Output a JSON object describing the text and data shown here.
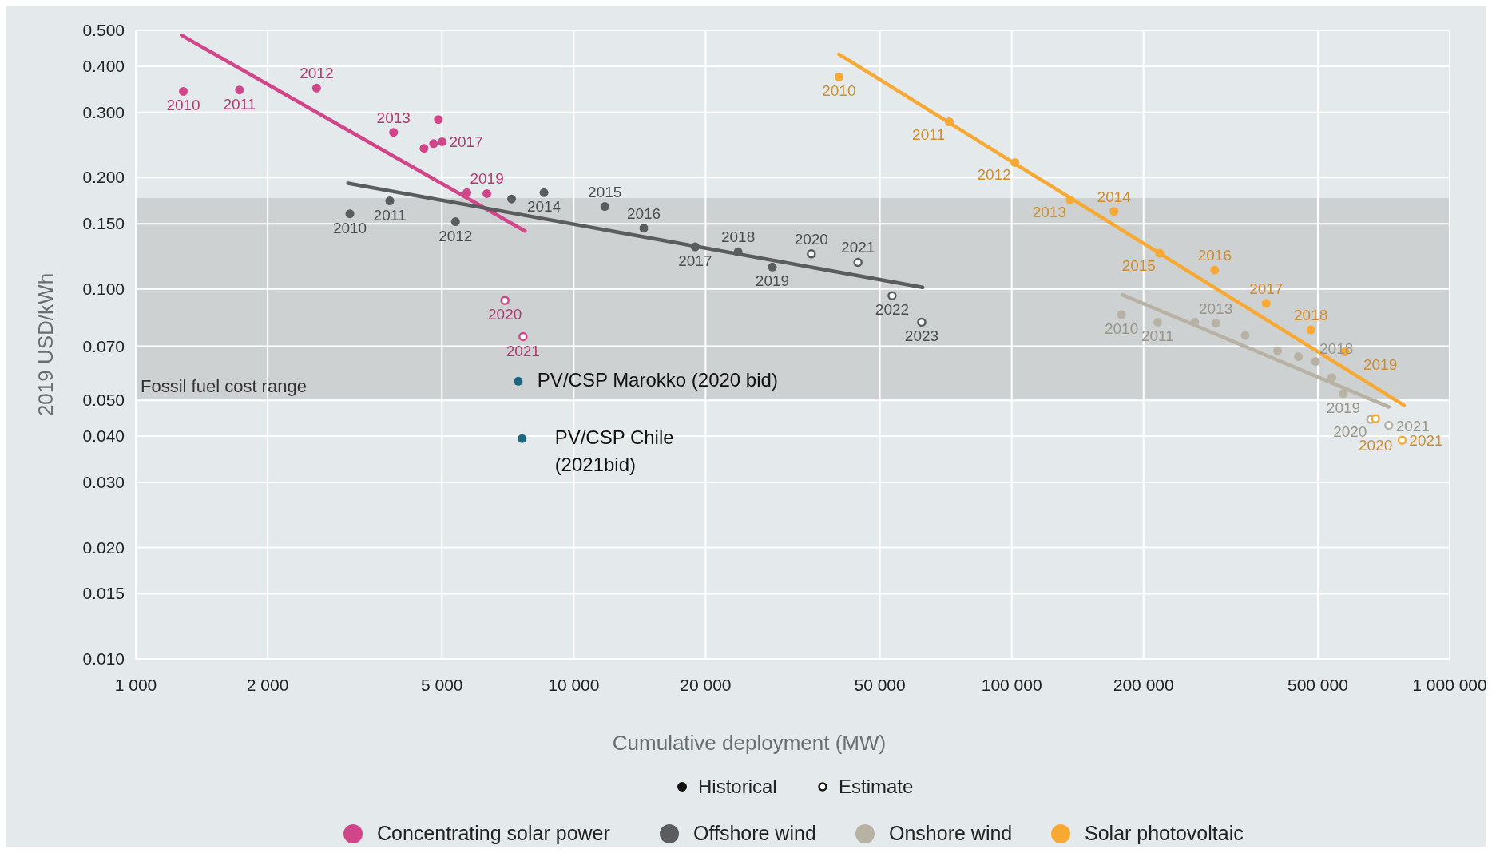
{
  "chart_data": {
    "type": "scatter",
    "xlabel": "Cumulative deployment (MW)",
    "ylabel": "2019 USD/kWh",
    "log": "xy",
    "grid": true,
    "legend": "bottom",
    "marker": "circle",
    "xlim": [
      1000,
      1000000
    ],
    "ylim": [
      0.01,
      0.5
    ],
    "xticks": [
      {
        "value": 1000,
        "label": "1 000"
      },
      {
        "value": 2000,
        "label": "2 000"
      },
      {
        "value": 5000,
        "label": "5 000"
      },
      {
        "value": 10000,
        "label": "10 000"
      },
      {
        "value": 20000,
        "label": "20 000"
      },
      {
        "value": 50000,
        "label": "50 000"
      },
      {
        "value": 100000,
        "label": "100 000"
      },
      {
        "value": 200000,
        "label": "200 000"
      },
      {
        "value": 500000,
        "label": "500 000"
      },
      {
        "value": 1000000,
        "label": "1 000 000"
      }
    ],
    "yticks": [
      {
        "value": 0.01,
        "label": "0.010"
      },
      {
        "value": 0.015,
        "label": "0.015"
      },
      {
        "value": 0.02,
        "label": "0.020"
      },
      {
        "value": 0.03,
        "label": "0.030"
      },
      {
        "value": 0.04,
        "label": "0.040"
      },
      {
        "value": 0.05,
        "label": "0.050"
      },
      {
        "value": 0.07,
        "label": "0.070"
      },
      {
        "value": 0.1,
        "label": "0.100"
      },
      {
        "value": 0.15,
        "label": "0.150"
      },
      {
        "value": 0.2,
        "label": "0.200"
      },
      {
        "value": 0.3,
        "label": "0.300"
      },
      {
        "value": 0.4,
        "label": "0.400"
      },
      {
        "value": 0.5,
        "label": "0.500"
      }
    ],
    "bands": [
      {
        "axis": "y",
        "from": 0.05,
        "to": 0.176,
        "label": "Fossil fuel cost range",
        "color": "#cdd1d2"
      }
    ],
    "annotations": [
      "Historical",
      "Estimate",
      {
        "text": "2010",
        "x": 1284,
        "y": 0.342
      },
      {
        "text": "2011",
        "x": 1725,
        "y": 0.345
      },
      {
        "text": "2012",
        "x": 2587,
        "y": 0.349
      },
      {
        "text": "2013",
        "x": 3878,
        "y": 0.265
      },
      {
        "text": "2017",
        "x": 5007,
        "y": 0.25
      },
      {
        "text": "2019",
        "x": 6334,
        "y": 0.181
      },
      {
        "text": "2020",
        "x": 6965,
        "y": 0.0931
      },
      {
        "text": "2021",
        "x": 7659,
        "y": 0.0743
      },
      {
        "text": "2010",
        "x": 3082,
        "y": 0.1596
      },
      {
        "text": "2011",
        "x": 3802,
        "y": 0.173
      },
      {
        "text": "2012",
        "x": 5370,
        "y": 0.152
      },
      {
        "text": "2014",
        "x": 8551,
        "y": 0.182
      },
      {
        "text": "2015",
        "x": 11776,
        "y": 0.167
      },
      {
        "text": "2016",
        "x": 14454,
        "y": 0.146
      },
      {
        "text": "2017",
        "x": 18940,
        "y": 0.13
      },
      {
        "text": "2018",
        "x": 23730,
        "y": 0.126
      },
      {
        "text": "2019",
        "x": 28410,
        "y": 0.1146
      },
      {
        "text": "2020",
        "x": 34870,
        "y": 0.1244
      },
      {
        "text": "2021",
        "x": 44570,
        "y": 0.118
      },
      {
        "text": "2022",
        "x": 53330,
        "y": 0.0959
      },
      {
        "text": "2023",
        "x": 62300,
        "y": 0.0813
      },
      {
        "text": "2010",
        "x": 178100,
        "y": 0.0852
      },
      {
        "text": "2011",
        "x": 215400,
        "y": 0.0813
      },
      {
        "text": "2013",
        "x": 292300,
        "y": 0.0808
      },
      {
        "text": "2018",
        "x": 494200,
        "y": 0.0637
      },
      {
        "text": "2019",
        "x": 572000,
        "y": 0.0522
      },
      {
        "text": "2020",
        "x": 660700,
        "y": 0.0444
      },
      {
        "text": "2021",
        "x": 726100,
        "y": 0.0428
      },
      {
        "text": "2010",
        "x": 40320,
        "y": 0.374
      },
      {
        "text": "2011",
        "x": 72030,
        "y": 0.283
      },
      {
        "text": "2012",
        "x": 101700,
        "y": 0.2197
      },
      {
        "text": "2013",
        "x": 135990,
        "y": 0.174
      },
      {
        "text": "2014",
        "x": 171200,
        "y": 0.162
      },
      {
        "text": "2015",
        "x": 217600,
        "y": 0.125
      },
      {
        "text": "2016",
        "x": 290800,
        "y": 0.1125
      },
      {
        "text": "2017",
        "x": 381100,
        "y": 0.0914
      },
      {
        "text": "2018",
        "x": 481900,
        "y": 0.0775
      },
      {
        "text": "2019",
        "x": 577100,
        "y": 0.0676
      },
      {
        "text": "2020",
        "x": 677000,
        "y": 0.0446
      },
      {
        "text": "2021",
        "x": 778900,
        "y": 0.039
      }
    ],
    "series": [
      {
        "type": "line",
        "marker": "none",
        "color": "#d1468a",
        "x": [
          1272,
          7738
        ],
        "values": [
          0.485,
          0.1434
        ]
      },
      {
        "type": "line",
        "marker": "none",
        "color": "#5a5c5e",
        "x": [
          3052,
          62590
        ],
        "values": [
          0.193,
          0.101
        ]
      },
      {
        "type": "line",
        "marker": "none",
        "color": "#b8b2a4",
        "x": [
          179000,
          726100
        ],
        "values": [
          0.0964,
          0.048
        ]
      },
      {
        "type": "line",
        "marker": "none",
        "color": "#f7a934",
        "x": [
          40320,
          786700
        ],
        "values": [
          0.431,
          0.0485
        ]
      },
      {
        "name": "Concentrating solar power",
        "color": "#d1468a",
        "x": [
          1284,
          1725,
          2587,
          3878,
          4552,
          4786,
          4908,
          5007,
          5702,
          6334
        ],
        "values": [
          0.342,
          0.345,
          0.349,
          0.265,
          0.24,
          0.247,
          0.287,
          0.25,
          0.182,
          0.181
        ]
      },
      {
        "color": "#d1468a",
        "x": [
          6965,
          7659
        ],
        "values": [
          0.0931,
          0.0743
        ]
      },
      {
        "name": "Offshore wind",
        "color": "#5a5c5e",
        "x": [
          3082,
          3802,
          5370,
          7213,
          8551,
          11776,
          14454,
          18940,
          23730,
          28410
        ],
        "values": [
          0.1596,
          0.173,
          0.152,
          0.175,
          0.182,
          0.167,
          0.146,
          0.13,
          0.126,
          0.1146
        ]
      },
      {
        "color": "#5a5c5e",
        "x": [
          34870,
          44570,
          53330,
          62300
        ],
        "values": [
          0.1244,
          0.118,
          0.0959,
          0.0813
        ]
      },
      {
        "name": "Onshore wind",
        "color": "#b8b2a4",
        "x": [
          178100,
          215400,
          261800,
          292300,
          341300,
          404600,
          451600,
          494200,
          538100,
          572000
        ],
        "values": [
          0.0852,
          0.0813,
          0.0813,
          0.0808,
          0.0748,
          0.068,
          0.0656,
          0.0637,
          0.0576,
          0.0522
        ]
      },
      {
        "color": "#b8b2a4",
        "x": [
          660700,
          726100
        ],
        "values": [
          0.0444,
          0.0428
        ]
      },
      {
        "name": "Solar photovoltaic",
        "color": "#f7a934",
        "x": [
          40320,
          72030,
          101700,
          135990,
          171200,
          217600,
          290800,
          381100,
          481900,
          577100
        ],
        "values": [
          0.374,
          0.283,
          0.2197,
          0.174,
          0.162,
          0.125,
          0.1125,
          0.0914,
          0.0775,
          0.0676
        ]
      },
      {
        "color": "#f7a934",
        "x": [
          677000,
          778900
        ],
        "values": [
          0.0446,
          0.039
        ]
      },
      {
        "name": "PV/CSP Marokko (2020 bid)",
        "color": "#1d6680",
        "x": [
          7470
        ],
        "values": [
          0.0563
        ]
      },
      {
        "name": "PV/CSP Chile (2021bid)",
        "color": "#1d6680",
        "x": [
          7621
        ],
        "values": [
          0.0394
        ]
      }
    ]
  }
}
